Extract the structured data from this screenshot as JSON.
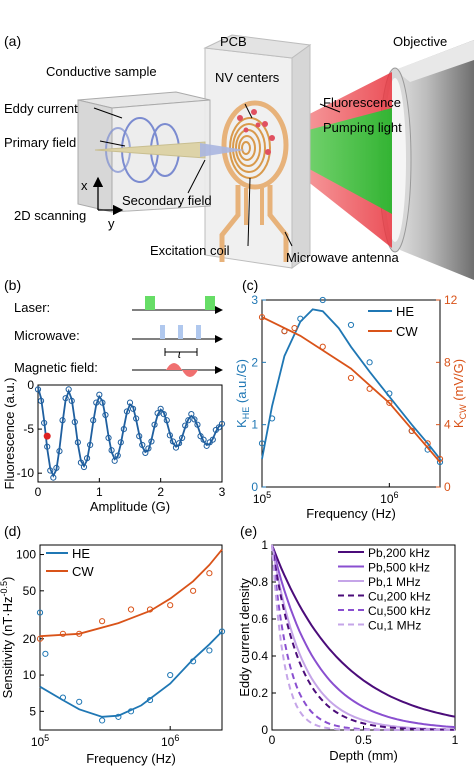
{
  "panel_a": {
    "letter": "(a)",
    "labels": {
      "pcb": "PCB",
      "objective": "Objective",
      "conductive_sample": "Conductive sample",
      "nv_centers": "NV centers",
      "eddy_current": "Eddy current",
      "fluorescence": "Fluorescence",
      "pumping_light": "Pumping light",
      "primary_field": "Primary field",
      "axis_x": "x",
      "axis_y": "y",
      "secondary_field": "Secondary field",
      "scanning": "2D scanning",
      "excitation_coil": "Excitation coil",
      "microwave_antenna": "Microwave antenna"
    },
    "colors": {
      "green": "#2ecc40",
      "red": "#e8323c",
      "coil": "#e0a050",
      "field": "#d8d0a0",
      "eddy": "#8090d0"
    }
  },
  "panel_b": {
    "letter": "(b)",
    "sequence": {
      "laser": "Laser:",
      "microwave": "Microwave:",
      "magnetic": "Magnetic field:",
      "tau": "τ"
    },
    "colors": {
      "laser": "#66dd66",
      "microwave": "#b0c8ee",
      "magnetic": "#f07070"
    },
    "chart_data": {
      "type": "line",
      "xlabel": "Amplitude (G)",
      "ylabel": "Fluorescence (a.u.)",
      "xlim": [
        0,
        3
      ],
      "ylim": [
        -11,
        0
      ],
      "xticks": [
        "0",
        "1",
        "2",
        "3"
      ],
      "yticks": [
        "0",
        "-5",
        "-10"
      ],
      "series": [
        {
          "kind": "fit",
          "color": "#1f5f9f",
          "x": [
            0,
            0.05,
            0.1,
            0.15,
            0.2,
            0.25,
            0.3,
            0.35,
            0.4,
            0.45,
            0.5,
            0.55,
            0.6,
            0.65,
            0.7,
            0.75,
            0.8,
            0.85,
            0.9,
            0.95,
            1.0,
            1.05,
            1.1,
            1.15,
            1.2,
            1.25,
            1.3,
            1.35,
            1.4,
            1.45,
            1.5,
            1.55,
            1.6,
            1.65,
            1.7,
            1.75,
            1.8,
            1.85,
            1.9,
            1.95,
            2.0,
            2.05,
            2.1,
            2.15,
            2.2,
            2.25,
            2.3,
            2.35,
            2.4,
            2.45,
            2.5,
            2.55,
            2.6,
            2.65,
            2.7,
            2.75,
            2.8,
            2.85,
            2.9,
            2.95,
            3.0
          ],
          "y": [
            -0.3,
            -1.5,
            -4.0,
            -7.2,
            -9.5,
            -10.3,
            -9.6,
            -7.2,
            -4.3,
            -1.7,
            -0.7,
            -1.6,
            -4.0,
            -6.7,
            -8.6,
            -9.2,
            -8.5,
            -6.6,
            -4.2,
            -2.2,
            -1.3,
            -1.8,
            -3.6,
            -5.8,
            -7.6,
            -8.4,
            -8.1,
            -6.7,
            -4.8,
            -3.1,
            -2.2,
            -2.5,
            -3.9,
            -5.6,
            -7.0,
            -7.6,
            -7.4,
            -6.2,
            -4.7,
            -3.4,
            -2.8,
            -3.1,
            -4.2,
            -5.5,
            -6.6,
            -7.0,
            -6.8,
            -5.9,
            -4.8,
            -3.9,
            -3.5,
            -3.8,
            -4.6,
            -5.6,
            -6.4,
            -6.8,
            -6.7,
            -6.1,
            -5.3,
            -4.7,
            -4.5
          ]
        },
        {
          "kind": "data",
          "color": "#1f5f9f",
          "x": [
            0,
            0.05,
            0.1,
            0.15,
            0.2,
            0.25,
            0.3,
            0.35,
            0.4,
            0.45,
            0.5,
            0.55,
            0.6,
            0.65,
            0.7,
            0.75,
            0.8,
            0.85,
            0.9,
            0.95,
            1.0,
            1.05,
            1.1,
            1.15,
            1.2,
            1.25,
            1.3,
            1.35,
            1.4,
            1.45,
            1.5,
            1.55,
            1.6,
            1.65,
            1.7,
            1.75,
            1.8,
            1.85,
            1.9,
            1.95,
            2.0,
            2.05,
            2.1,
            2.15,
            2.2,
            2.25,
            2.3,
            2.35,
            2.4,
            2.45,
            2.5,
            2.55,
            2.6,
            2.65,
            2.7,
            2.75,
            2.8,
            2.85,
            2.9,
            2.95,
            3.0
          ],
          "y": [
            -0.5,
            -1.8,
            -4.3,
            -7.0,
            -9.7,
            -10.5,
            -9.4,
            -7.5,
            -4.0,
            -1.5,
            -0.5,
            -1.8,
            -4.2,
            -6.5,
            -8.8,
            -9.3,
            -8.3,
            -6.8,
            -4.0,
            -2.0,
            -1.1,
            -2.0,
            -3.4,
            -6.0,
            -7.4,
            -8.6,
            -8.0,
            -6.5,
            -5.0,
            -3.0,
            -2.0,
            -2.7,
            -3.8,
            -5.8,
            -6.8,
            -7.7,
            -7.2,
            -6.4,
            -4.5,
            -3.2,
            -2.7,
            -3.3,
            -4.0,
            -5.7,
            -6.4,
            -7.1,
            -6.6,
            -6.0,
            -4.6,
            -4.0,
            -3.3,
            -3.9,
            -4.5,
            -5.8,
            -6.2,
            -6.9,
            -6.5,
            -6.2,
            -5.1,
            -4.8,
            -4.4
          ]
        },
        {
          "kind": "highlight",
          "color": "#dd2222",
          "x": [
            0.15
          ],
          "y": [
            -5.8
          ]
        }
      ]
    }
  },
  "panel_c": {
    "letter": "(c)",
    "chart_data": {
      "type": "line",
      "xlabel": "Frequency (Hz)",
      "ylabel_left": "K",
      "ylabel_left_sub": "HE",
      "ylabel_left_unit": " (a.u./G)",
      "ylabel_right": "K",
      "ylabel_right_sub": "CW",
      "ylabel_right_unit": " (mV/G)",
      "xscale": "log",
      "xlim": [
        100000,
        2500000
      ],
      "ylim_left": [
        0,
        3
      ],
      "ylim_right": [
        0,
        12
      ],
      "xticks": [
        {
          "v": 100000,
          "base": "10",
          "exp": "5"
        },
        {
          "v": 1000000,
          "base": "10",
          "exp": "6"
        }
      ],
      "yticks_left": [
        "0",
        "1",
        "2",
        "3"
      ],
      "yticks_right": [
        "0",
        "4",
        "8",
        "12"
      ],
      "legend": [
        {
          "name": "HE",
          "color": "#1f77b4"
        },
        {
          "name": "CW",
          "color": "#d95319"
        }
      ],
      "legend_position": "top-right",
      "series": [
        {
          "name": "HE",
          "axis": "left",
          "color": "#1f77b4",
          "kind": "fit",
          "x": [
            100000,
            120000,
            150000,
            200000,
            250000,
            300000,
            400000,
            500000,
            700000,
            1000000,
            1500000,
            2000000,
            2500000
          ],
          "y": [
            0.45,
            1.3,
            2.1,
            2.65,
            2.85,
            2.82,
            2.55,
            2.25,
            1.85,
            1.45,
            1.0,
            0.7,
            0.45
          ]
        },
        {
          "name": "HE",
          "axis": "left",
          "color": "#1f77b4",
          "kind": "data",
          "x": [
            100000,
            120000,
            150000,
            200000,
            300000,
            500000,
            700000,
            1000000,
            1500000,
            2000000,
            2500000
          ],
          "y": [
            0.7,
            1.1,
            2.5,
            2.7,
            3.0,
            2.6,
            2.0,
            1.5,
            0.9,
            0.6,
            0.4
          ]
        },
        {
          "name": "CW",
          "axis": "right",
          "color": "#d95319",
          "kind": "fit",
          "x": [
            100000,
            200000,
            500000,
            1000000,
            2500000
          ],
          "y": [
            10.9,
            9.7,
            7.6,
            5.4,
            1.6
          ]
        },
        {
          "name": "CW",
          "axis": "right",
          "color": "#d95319",
          "kind": "data",
          "x": [
            100000,
            150000,
            180000,
            300000,
            500000,
            700000,
            1000000,
            1500000,
            2000000,
            2500000
          ],
          "y": [
            10.9,
            10.0,
            10.2,
            9.0,
            7.0,
            6.3,
            5.4,
            3.6,
            2.8,
            1.8
          ]
        }
      ]
    }
  },
  "panel_d": {
    "letter": "(d)",
    "chart_data": {
      "type": "line",
      "xlabel": "Frequency (Hz)",
      "ylabel": "Sensitivity (nT·Hz",
      "ylabel_exp": "-0.5",
      "ylabel_close": ")",
      "xscale": "log",
      "yscale": "log",
      "xlim": [
        100000,
        2500000
      ],
      "ylim": [
        3.5,
        120
      ],
      "yticks": [
        5,
        10,
        20,
        50,
        100
      ],
      "xticks": [
        {
          "v": 100000,
          "base": "10",
          "exp": "5"
        },
        {
          "v": 1000000,
          "base": "10",
          "exp": "6"
        }
      ],
      "legend": [
        {
          "name": "HE",
          "color": "#1f77b4"
        },
        {
          "name": "CW",
          "color": "#d95319"
        }
      ],
      "legend_position": "top-left",
      "series": [
        {
          "name": "HE",
          "color": "#1f77b4",
          "kind": "fit",
          "x": [
            100000,
            150000,
            200000,
            300000,
            400000,
            600000,
            1000000,
            1500000,
            2000000,
            2500000
          ],
          "y": [
            8.0,
            6.2,
            5.2,
            4.5,
            4.6,
            5.6,
            8.5,
            13.5,
            18.0,
            23.0
          ]
        },
        {
          "name": "HE",
          "color": "#1f77b4",
          "kind": "data",
          "x": [
            100000,
            110000,
            150000,
            200000,
            300000,
            400000,
            500000,
            700000,
            1000000,
            1500000,
            2000000,
            2500000
          ],
          "y": [
            33.0,
            15.0,
            6.5,
            6.0,
            4.2,
            4.5,
            5.0,
            6.2,
            10.0,
            13.0,
            16.0,
            23.0
          ]
        },
        {
          "name": "CW",
          "color": "#d95319",
          "kind": "fit",
          "x": [
            100000,
            200000,
            400000,
            700000,
            1000000,
            1500000,
            2000000,
            2500000
          ],
          "y": [
            21.0,
            22.0,
            27.0,
            34.0,
            43.0,
            60.0,
            82.0,
            110.0
          ]
        },
        {
          "name": "CW",
          "color": "#d95319",
          "kind": "data",
          "x": [
            100000,
            150000,
            200000,
            300000,
            500000,
            700000,
            1000000,
            1500000,
            2000000
          ],
          "y": [
            20.0,
            22.0,
            22.0,
            28.0,
            35.0,
            35.0,
            38.0,
            50.0,
            70.0
          ]
        }
      ]
    }
  },
  "panel_e": {
    "letter": "(e)",
    "chart_data": {
      "type": "line",
      "xlabel": "Depth (mm)",
      "ylabel": "Eddy current density",
      "xlim": [
        0,
        1
      ],
      "ylim": [
        0,
        1
      ],
      "xticks": [
        "0",
        "0.5",
        "1"
      ],
      "yticks": [
        "0",
        "0.2",
        "0.4",
        "0.6",
        "0.8",
        "1"
      ],
      "legend_position": "top-right",
      "series": [
        {
          "name": "Pb,200 kHz",
          "color": "#4b0c7a",
          "dash": false,
          "decay_mm": 0.38
        },
        {
          "name": "Pb,500 kHz",
          "color": "#8a4fd0",
          "dash": false,
          "decay_mm": 0.24
        },
        {
          "name": "Pb,1 MHz",
          "color": "#c5a5e8",
          "dash": false,
          "decay_mm": 0.17
        },
        {
          "name": "Cu,200 kHz",
          "color": "#4b0c7a",
          "dash": true,
          "decay_mm": 0.15
        },
        {
          "name": "Cu,500 kHz",
          "color": "#8a4fd0",
          "dash": true,
          "decay_mm": 0.093
        },
        {
          "name": "Cu,1 MHz",
          "color": "#c5a5e8",
          "dash": true,
          "decay_mm": 0.066
        }
      ]
    }
  }
}
